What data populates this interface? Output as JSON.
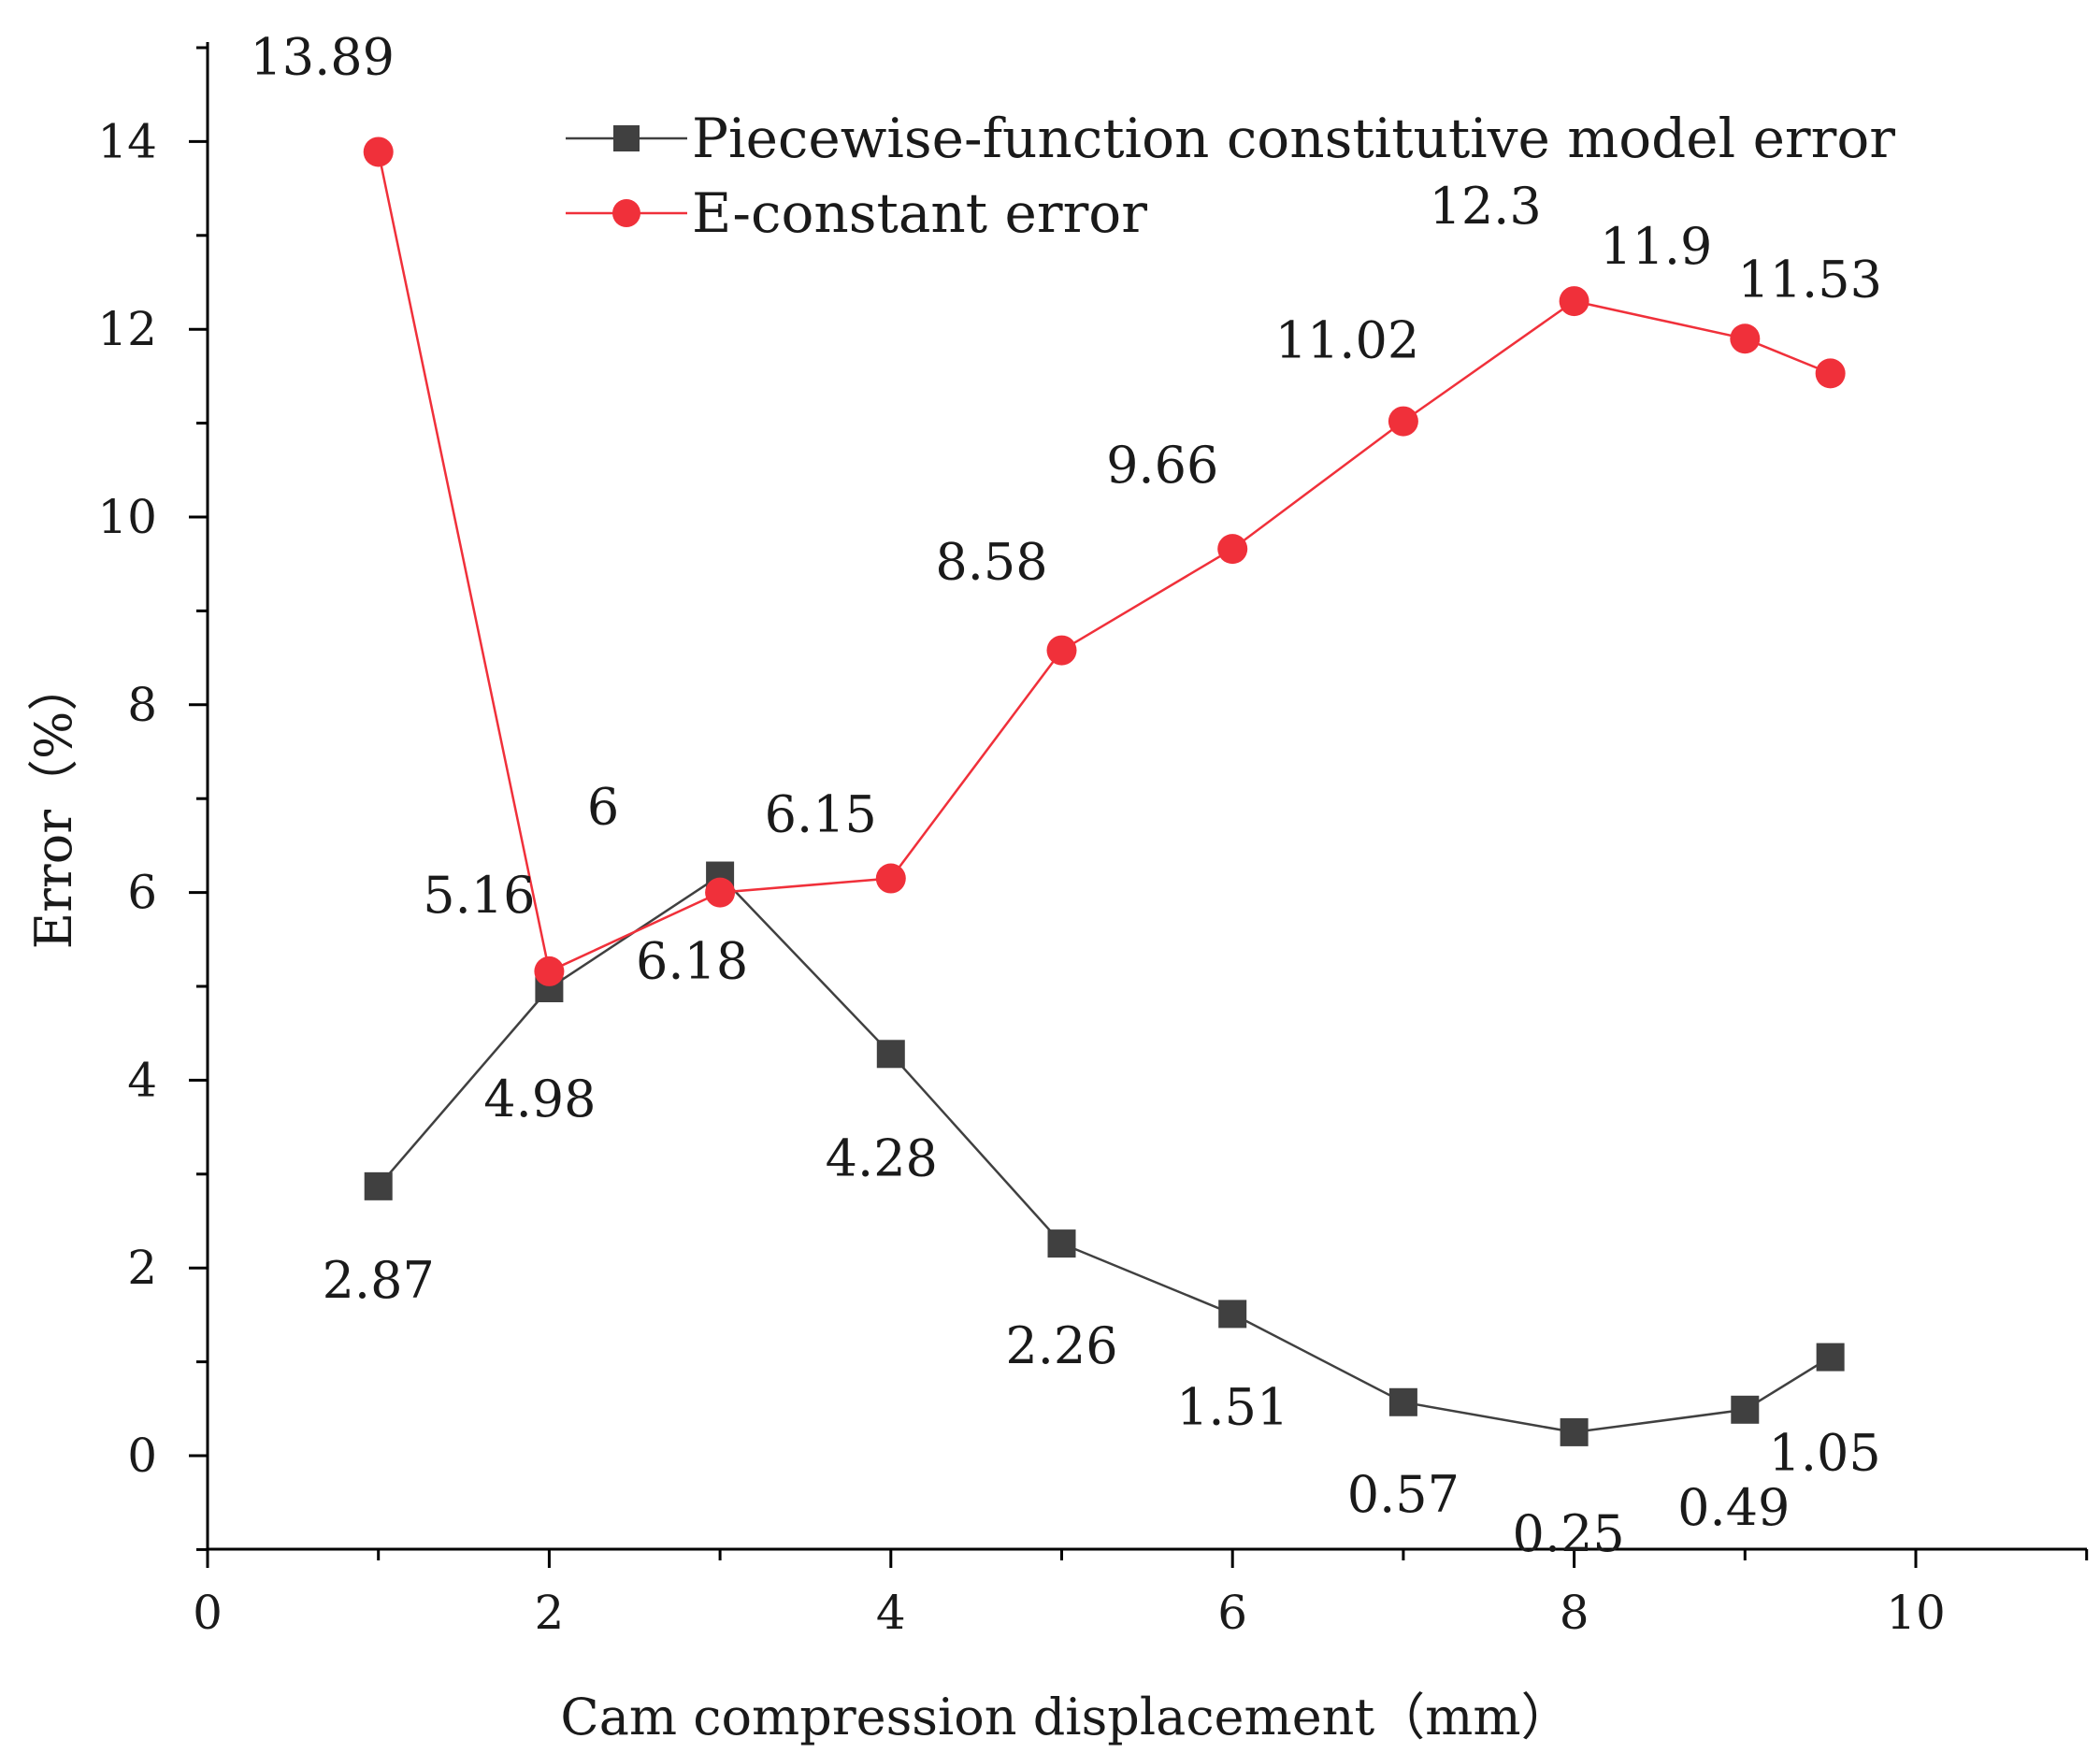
{
  "chart_data": {
    "type": "line",
    "title": "",
    "xlabel": "Cam compression displacement（mm）",
    "ylabel": "Error（%）",
    "xlim": [
      0,
      11
    ],
    "ylim": [
      -1,
      15
    ],
    "xticks": [
      0,
      2,
      4,
      6,
      8,
      10
    ],
    "yticks": [
      0,
      2,
      4,
      6,
      8,
      10,
      12,
      14
    ],
    "grid": false,
    "legend_position": "top-right",
    "series": [
      {
        "name": "Piecewise-function constitutive model error",
        "marker": "square",
        "color": "#404040",
        "x": [
          1,
          2,
          3,
          4,
          5,
          6,
          7,
          8,
          9,
          9.5
        ],
        "values": [
          2.87,
          4.98,
          6.18,
          4.28,
          2.26,
          1.51,
          0.57,
          0.25,
          0.49,
          1.05
        ],
        "labels": [
          "2.87",
          "4.98",
          "6.18",
          "4.28",
          "2.26",
          "1.51",
          "0.57",
          "0.25",
          "0.49",
          "1.05"
        ]
      },
      {
        "name": "E-constant error",
        "marker": "circle",
        "color": "#f0303a",
        "x": [
          1,
          2,
          3,
          4,
          5,
          6,
          7,
          8,
          9,
          9.5
        ],
        "values": [
          13.89,
          5.16,
          6,
          6.15,
          8.58,
          9.66,
          11.02,
          12.3,
          11.9,
          11.53
        ],
        "labels": [
          "13.89",
          "5.16",
          "6",
          "6.15",
          "8.58",
          "9.66",
          "11.02",
          "12.3",
          "11.9",
          "11.53"
        ]
      }
    ]
  }
}
